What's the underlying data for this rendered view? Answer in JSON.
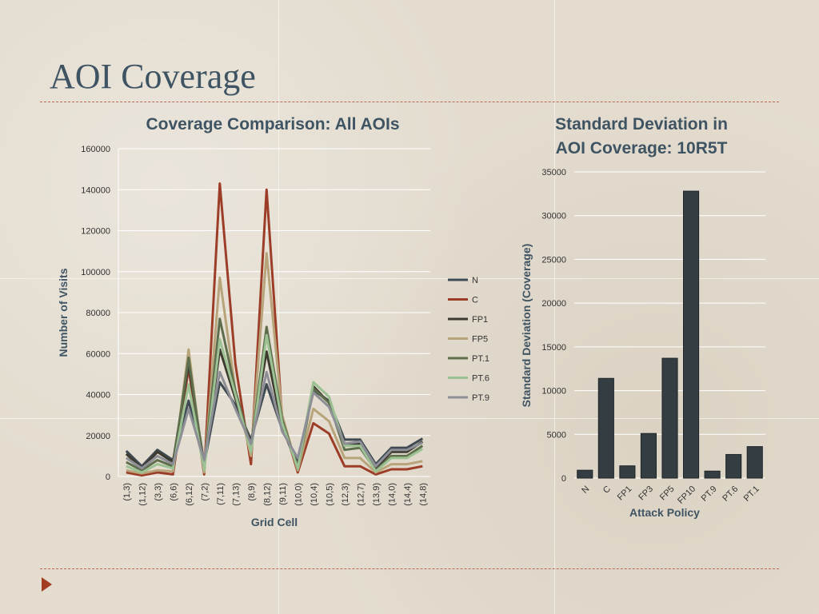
{
  "slide": {
    "title": "AOI Coverage"
  },
  "chart_data": [
    {
      "type": "line",
      "title": "Coverage Comparison: All AOIs",
      "xlabel": "Grid Cell",
      "ylabel": "Number of Visits",
      "ylim": [
        0,
        160000
      ],
      "yticks": [
        0,
        20000,
        40000,
        60000,
        80000,
        100000,
        120000,
        140000,
        160000
      ],
      "grid": true,
      "legend": "right",
      "categories": [
        "(1,3)",
        "(1,12)",
        "(3,3)",
        "(6,6)",
        "(6,12)",
        "(7,2)",
        "(7,11)",
        "(7,13)",
        "(8,9)",
        "(8,12)",
        "(9,11)",
        "(10,0)",
        "(10,4)",
        "(10,5)",
        "(12,3)",
        "(12,7)",
        "(13,9)",
        "(14,0)",
        "(14,4)",
        "(14,8)"
      ],
      "series": [
        {
          "name": "N",
          "color": "#3f4a52",
          "values": [
            12500,
            5000,
            13000,
            8000,
            37000,
            6000,
            46000,
            35000,
            18000,
            45000,
            23000,
            8000,
            42000,
            37000,
            18000,
            18000,
            6000,
            14000,
            14000,
            18500
          ]
        },
        {
          "name": "C",
          "color": "#9c3d28",
          "values": [
            2000,
            500,
            2000,
            1000,
            53000,
            1000,
            143000,
            55000,
            6000,
            140000,
            28000,
            2000,
            26000,
            21000,
            5000,
            5000,
            1000,
            3500,
            3500,
            5000
          ]
        },
        {
          "name": "FP1",
          "color": "#3d3a30",
          "values": [
            11000,
            4000,
            12000,
            7000,
            55000,
            6000,
            62000,
            38000,
            16000,
            61000,
            24000,
            5000,
            44000,
            36000,
            16000,
            16000,
            4000,
            12000,
            12000,
            17000
          ]
        },
        {
          "name": "FP5",
          "color": "#b7a47a",
          "values": [
            3000,
            1500,
            3000,
            2500,
            62000,
            2000,
            97000,
            42000,
            10000,
            109000,
            30000,
            3000,
            33000,
            27000,
            9000,
            9000,
            2000,
            6000,
            6000,
            7500
          ]
        },
        {
          "name": "PT.1",
          "color": "#5e6e4c",
          "values": [
            7000,
            3000,
            8000,
            5000,
            58000,
            4000,
            77000,
            42000,
            14000,
            73000,
            28000,
            4000,
            43000,
            36000,
            13000,
            14000,
            3000,
            10000,
            10000,
            15000
          ]
        },
        {
          "name": "PT.6",
          "color": "#9cc293",
          "values": [
            5000,
            2000,
            6000,
            4000,
            45000,
            3000,
            67000,
            40000,
            12000,
            69000,
            26000,
            4000,
            46000,
            39000,
            15000,
            15000,
            2500,
            9000,
            9000,
            13500
          ]
        },
        {
          "name": "PT.9",
          "color": "#8e8e96",
          "values": [
            9000,
            4000,
            10000,
            6000,
            33000,
            8000,
            51000,
            33000,
            16000,
            51000,
            22000,
            9000,
            41000,
            34000,
            16000,
            17000,
            5000,
            13000,
            13000,
            16500
          ]
        }
      ]
    },
    {
      "type": "bar",
      "title": "Standard Deviation in AOI Coverage: 10R5T",
      "title_lines": [
        "Standard Deviation in",
        "AOI Coverage: 10R5T"
      ],
      "xlabel": "Attack Policy",
      "ylabel": "Standard Deviation (Coverage)",
      "ylim": [
        0,
        35000
      ],
      "yticks": [
        0,
        5000,
        10000,
        15000,
        20000,
        25000,
        30000,
        35000
      ],
      "grid": true,
      "bar_color": "#343d42",
      "categories": [
        "N",
        "C",
        "FP1",
        "FP3",
        "FP5",
        "FP10",
        "PT.9",
        "PT.6",
        "PT.1"
      ],
      "values": [
        900,
        11400,
        1400,
        5100,
        13700,
        32800,
        800,
        2700,
        3600
      ]
    }
  ]
}
